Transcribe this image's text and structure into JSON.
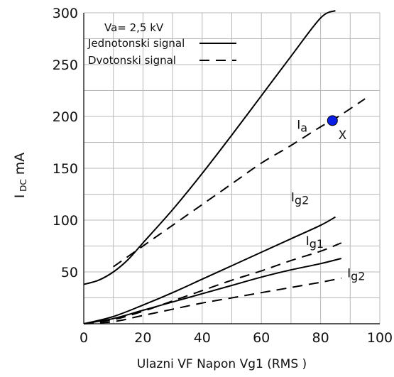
{
  "chart_data": {
    "type": "line",
    "xlabel": "Ulazni VF Napon  Vg1  (RMS )",
    "ylabel_main": "I",
    "ylabel_sub": "DC",
    "ylabel_unit": "mA",
    "xlim": [
      0,
      100
    ],
    "ylim": [
      0,
      300
    ],
    "xticks": [
      "0",
      "20",
      "40",
      "60",
      "80",
      "100"
    ],
    "yticks": [
      "50",
      "100",
      "150",
      "200",
      "250",
      "300"
    ],
    "grid": true,
    "legend": {
      "header": "Va= 2,5 kV",
      "items": [
        {
          "label": "Jednotonski signal",
          "style": "solid"
        },
        {
          "label": "Dvotonski signal",
          "style": "dashed"
        }
      ]
    },
    "series": [
      {
        "style": "solid",
        "x": [
          0,
          5,
          10,
          15,
          20,
          30,
          40,
          50,
          60,
          70,
          80,
          85
        ],
        "y": [
          38,
          42,
          50,
          62,
          78,
          110,
          145,
          182,
          220,
          258,
          295,
          302
        ]
      },
      {
        "style": "dashed",
        "x": [
          10,
          20,
          30,
          40,
          50,
          60,
          70,
          80,
          85,
          95
        ],
        "y": [
          55,
          75,
          95,
          115,
          135,
          155,
          172,
          190,
          198,
          217
        ]
      },
      {
        "style": "solid",
        "x": [
          0,
          10,
          20,
          30,
          40,
          50,
          60,
          70,
          80,
          85
        ],
        "y": [
          0,
          7,
          18,
          30,
          43,
          56,
          69,
          82,
          95,
          103
        ]
      },
      {
        "style": "dashed",
        "x": [
          0,
          10,
          20,
          30,
          40,
          50,
          60,
          70,
          80,
          87
        ],
        "y": [
          0,
          4,
          12,
          22,
          32,
          42,
          51,
          61,
          70,
          78
        ]
      },
      {
        "style": "solid",
        "x": [
          0,
          10,
          20,
          30,
          40,
          50,
          60,
          70,
          80,
          87
        ],
        "y": [
          0,
          5,
          13,
          21,
          29,
          37,
          45,
          52,
          58,
          63
        ]
      },
      {
        "style": "dashed",
        "x": [
          0,
          10,
          20,
          30,
          40,
          50,
          60,
          70,
          80,
          87
        ],
        "y": [
          0,
          2,
          8,
          14,
          20,
          25,
          30,
          35,
          40,
          44
        ]
      }
    ],
    "annotations": [
      {
        "main": "I",
        "sub": "a",
        "x": 72,
        "y": 188
      },
      {
        "main": "I",
        "sub": "g2",
        "x": 70,
        "y": 118
      },
      {
        "main": "I",
        "sub": "g1",
        "x": 75,
        "y": 76
      },
      {
        "main": "I",
        "sub": "g2",
        "x": 89,
        "y": 45
      }
    ],
    "marker": {
      "x": 84,
      "y": 196,
      "color": "#0a1ee6",
      "label": "X",
      "label_x": 86,
      "label_y": 178
    }
  }
}
